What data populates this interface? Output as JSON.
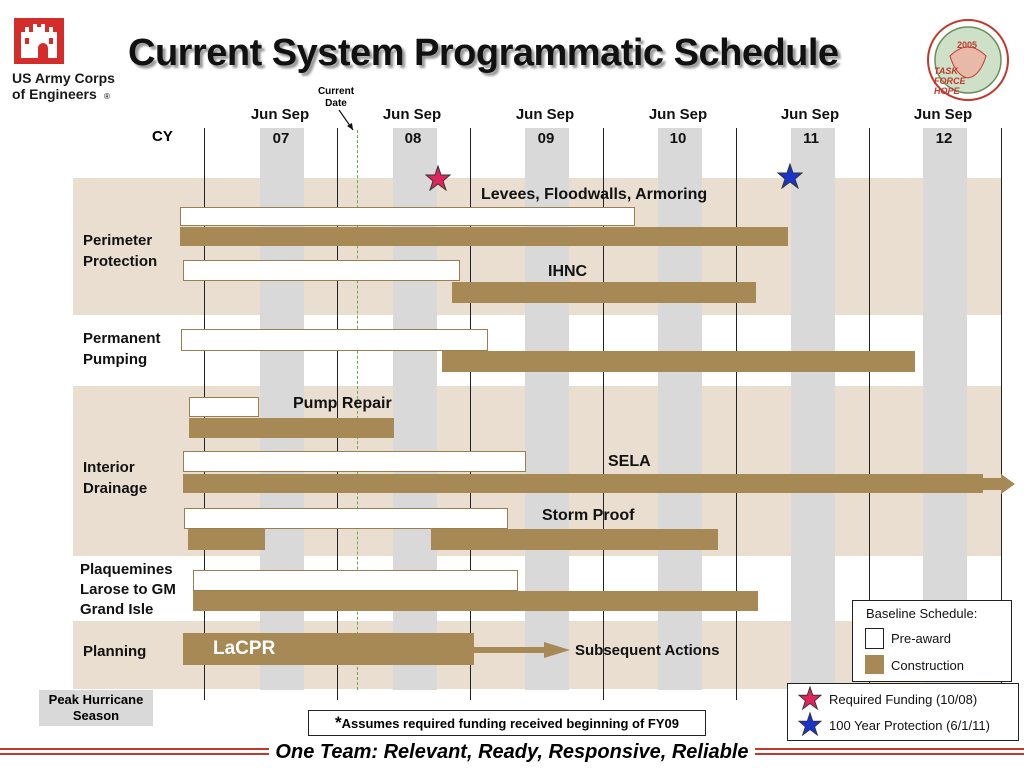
{
  "title": "Current System Programmatic Schedule",
  "logo": {
    "org_text": "US Army Corps\nof Engineers",
    "registered": "®"
  },
  "task_force_logo": {
    "year": "2005",
    "name": "TASK FORCE HOPE"
  },
  "current_date_label": "Current\nDate",
  "cy_label": "CY",
  "timeline": {
    "headers": [
      {
        "top": "Jun Sep",
        "year": "07"
      },
      {
        "top": "Jun Sep",
        "year": "08"
      },
      {
        "top": "Jun Sep",
        "year": "09"
      },
      {
        "top": "Jun Sep",
        "year": "10"
      },
      {
        "top": "Jun Sep",
        "year": "11"
      },
      {
        "top": "Jun Sep",
        "year": "12"
      }
    ]
  },
  "rows": {
    "perimeter": "Perimeter\nProtection",
    "pumping": "Permanent\nPumping",
    "drainage": "Interior\nDrainage",
    "plaquemines": "Plaquemines\nLarose to GM\nGrand Isle",
    "planning": "Planning"
  },
  "programs": {
    "levees": "Levees, Floodwalls, Armoring",
    "ihnc": "IHNC",
    "pump_repair": "Pump Repair",
    "sela": "SELA",
    "storm_proof": "Storm Proof",
    "lacpr": "LaCPR",
    "subsequent": "Subsequent Actions"
  },
  "legend": {
    "title": "Baseline Schedule:",
    "pre_award": "Pre-award",
    "construction": "Construction"
  },
  "stars_legend": {
    "required": "Required Funding (10/08)",
    "hundred": "100 Year Protection (6/1/11)"
  },
  "peak_season": "Peak Hurricane\nSeason",
  "assumption": {
    "mark": "*",
    "text": "Assumes required funding received beginning of FY09"
  },
  "footer": "One Team: Relevant, Ready, Responsive, Reliable",
  "colors": {
    "construction": "#a68955",
    "pre_award_border": "#9a7e52",
    "band": "#e9ded0",
    "season_column": "#d9d9d9",
    "current_date": "#6aa84f",
    "required_star": "#e0245e",
    "hundred_star": "#1a33cc",
    "footer_line": "#c0392b"
  }
}
